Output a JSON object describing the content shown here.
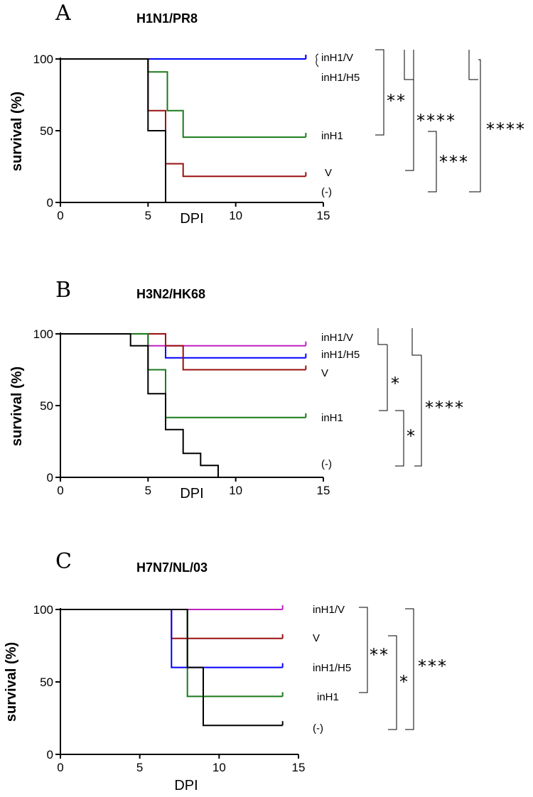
{
  "chart_data": [
    {
      "type": "line",
      "subtype": "kaplan-meier",
      "panel_letter": "A",
      "title": "H1N1/PR8",
      "xlabel": "DPI",
      "ylabel": "survival (%)",
      "xlim": [
        0,
        15
      ],
      "ylim": [
        0,
        100
      ],
      "xticks": [
        0,
        5,
        10,
        15
      ],
      "yticks": [
        0,
        50,
        100
      ],
      "grid": false,
      "series": [
        {
          "name": "inH1/V",
          "color": "#c020c0",
          "steps": [
            [
              0,
              100
            ],
            [
              14,
              100
            ]
          ]
        },
        {
          "name": "inH1/H5",
          "color": "#0000ff",
          "steps": [
            [
              0,
              100
            ],
            [
              14,
              100
            ]
          ]
        },
        {
          "name": "inH1",
          "color": "#1a7a1a",
          "steps": [
            [
              0,
              100
            ],
            [
              5,
              100
            ],
            [
              5,
              91
            ],
            [
              6.1,
              91
            ],
            [
              6.1,
              64
            ],
            [
              7,
              64
            ],
            [
              7,
              45.5
            ],
            [
              14,
              45.5
            ]
          ]
        },
        {
          "name": "V",
          "color": "#9a1010",
          "steps": [
            [
              0,
              100
            ],
            [
              5,
              100
            ],
            [
              5,
              64
            ],
            [
              6,
              64
            ],
            [
              6,
              27
            ],
            [
              7,
              27
            ],
            [
              7,
              18.2
            ],
            [
              14,
              18.2
            ]
          ]
        },
        {
          "name": "(-)",
          "color": "#000000",
          "steps": [
            [
              0,
              100
            ],
            [
              5,
              100
            ],
            [
              5,
              50
            ],
            [
              6,
              50
            ],
            [
              6,
              0
            ],
            [
              14,
              0
            ]
          ]
        }
      ],
      "legend": [
        "inH1/V",
        "inH1/H5",
        "inH1",
        "V",
        "(-)"
      ],
      "significance": [
        "**",
        "****",
        "***",
        "****"
      ]
    },
    {
      "type": "line",
      "subtype": "kaplan-meier",
      "panel_letter": "B",
      "title": "H3N2/HK68",
      "xlabel": "DPI",
      "ylabel": "survival (%)",
      "xlim": [
        0,
        15
      ],
      "ylim": [
        0,
        100
      ],
      "xticks": [
        0,
        5,
        10,
        15
      ],
      "yticks": [
        0,
        50,
        100
      ],
      "grid": false,
      "series": [
        {
          "name": "inH1/V",
          "color": "#c020c0",
          "steps": [
            [
              0,
              100
            ],
            [
              5,
              100
            ],
            [
              5,
              91.7
            ],
            [
              14,
              91.7
            ]
          ]
        },
        {
          "name": "inH1/H5",
          "color": "#0000ff",
          "steps": [
            [
              0,
              100
            ],
            [
              6,
              100
            ],
            [
              6,
              83.3
            ],
            [
              14,
              83.3
            ]
          ]
        },
        {
          "name": "V",
          "color": "#9a1010",
          "steps": [
            [
              0,
              100
            ],
            [
              6,
              100
            ],
            [
              6,
              91.7
            ],
            [
              7,
              91.7
            ],
            [
              7,
              75
            ],
            [
              14,
              75
            ]
          ]
        },
        {
          "name": "inH1",
          "color": "#1a7a1a",
          "steps": [
            [
              0,
              100
            ],
            [
              5,
              100
            ],
            [
              5,
              75
            ],
            [
              6,
              75
            ],
            [
              6,
              41.7
            ],
            [
              14,
              41.7
            ]
          ]
        },
        {
          "name": "(-)",
          "color": "#000000",
          "steps": [
            [
              0,
              100
            ],
            [
              4,
              100
            ],
            [
              4,
              91.7
            ],
            [
              5,
              91.7
            ],
            [
              5,
              58.3
            ],
            [
              6,
              58.3
            ],
            [
              6,
              33.3
            ],
            [
              7,
              33.3
            ],
            [
              7,
              16.7
            ],
            [
              8,
              16.7
            ],
            [
              8,
              8.3
            ],
            [
              9,
              8.3
            ],
            [
              9,
              0
            ]
          ]
        }
      ],
      "legend": [
        "inH1/V",
        "inH1/H5",
        "V",
        "inH1",
        "(-)"
      ],
      "significance": [
        "*",
        "*",
        "****"
      ]
    },
    {
      "type": "line",
      "subtype": "kaplan-meier",
      "panel_letter": "C",
      "title": "H7N7/NL/03",
      "xlabel": "DPI",
      "ylabel": "survival (%)",
      "xlim": [
        0,
        15
      ],
      "ylim": [
        0,
        100
      ],
      "xticks": [
        0,
        5,
        10,
        15
      ],
      "yticks": [
        0,
        50,
        100
      ],
      "grid": false,
      "series": [
        {
          "name": "inH1/V",
          "color": "#c020c0",
          "steps": [
            [
              0,
              100
            ],
            [
              14,
              100
            ]
          ]
        },
        {
          "name": "V",
          "color": "#9a1010",
          "steps": [
            [
              0,
              100
            ],
            [
              7,
              100
            ],
            [
              7,
              80
            ],
            [
              14,
              80
            ]
          ]
        },
        {
          "name": "inH1/H5",
          "color": "#0000ff",
          "steps": [
            [
              0,
              100
            ],
            [
              7,
              100
            ],
            [
              7,
              60
            ],
            [
              14,
              60
            ]
          ]
        },
        {
          "name": "inH1",
          "color": "#1a7a1a",
          "steps": [
            [
              0,
              100
            ],
            [
              8,
              100
            ],
            [
              8,
              40
            ],
            [
              14,
              40
            ]
          ]
        },
        {
          "name": "(-)",
          "color": "#000000",
          "steps": [
            [
              0,
              100
            ],
            [
              8,
              100
            ],
            [
              8,
              60
            ],
            [
              9,
              60
            ],
            [
              9,
              20
            ],
            [
              14,
              20
            ]
          ]
        }
      ],
      "legend": [
        "inH1/V",
        "V",
        "inH1/H5",
        "inH1",
        "(-)"
      ],
      "significance": [
        "**",
        "*",
        "***"
      ]
    }
  ]
}
